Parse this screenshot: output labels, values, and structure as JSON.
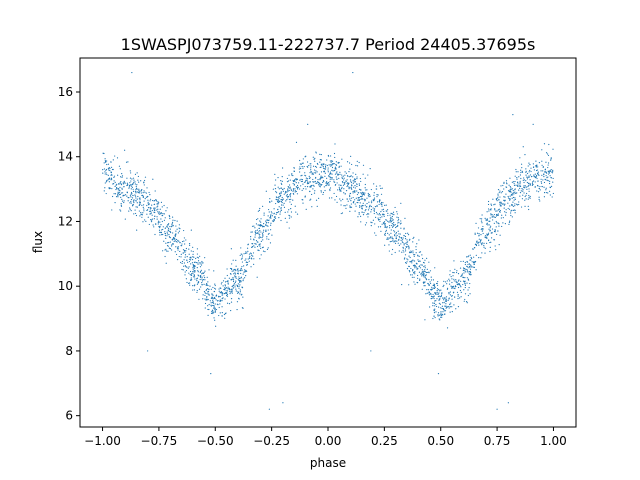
{
  "chart_data": {
    "type": "scatter",
    "title": "1SWASPJ073759.11-222737.7 Period 24405.37695s",
    "xlabel": "phase",
    "ylabel": "flux",
    "xlim": [
      -1.1,
      1.1
    ],
    "ylim": [
      5.65,
      17.05
    ],
    "x_ticks": [
      -1.0,
      -0.75,
      -0.5,
      -0.25,
      0.0,
      0.25,
      0.5,
      0.75,
      1.0
    ],
    "x_tick_labels": [
      "−1.00",
      "−0.75",
      "−0.50",
      "−0.25",
      "0.00",
      "0.25",
      "0.50",
      "0.75",
      "1.00"
    ],
    "y_ticks": [
      6,
      8,
      10,
      12,
      14,
      16
    ],
    "y_tick_labels": [
      "6",
      "8",
      "10",
      "12",
      "14",
      "16"
    ],
    "grid": false,
    "legend": "none",
    "marker_color": "#1f77b4",
    "series": [
      {
        "phase_range": [
          -1.0,
          1.0
        ],
        "trend": {
          "phase": [
            -1.0,
            -0.9,
            -0.8,
            -0.7,
            -0.6,
            -0.5,
            -0.4,
            -0.3,
            -0.2,
            -0.1,
            0.0,
            0.1,
            0.2,
            0.3,
            0.4,
            0.5,
            0.6,
            0.7,
            0.8,
            0.9,
            1.0
          ],
          "flux": [
            13.5,
            13.0,
            12.5,
            11.7,
            10.6,
            9.5,
            10.2,
            11.7,
            12.8,
            13.3,
            13.5,
            13.0,
            12.5,
            11.7,
            10.6,
            9.5,
            10.2,
            11.7,
            12.8,
            13.3,
            13.5
          ]
        },
        "scatter": 0.35,
        "point_count": 3000,
        "outliers": [
          {
            "phase": -0.87,
            "flux": 16.6
          },
          {
            "phase": 0.11,
            "flux": 16.6
          },
          {
            "phase": 0.82,
            "flux": 15.3
          },
          {
            "phase": -0.52,
            "flux": 7.3
          },
          {
            "phase": 0.49,
            "flux": 7.3
          },
          {
            "phase": -0.26,
            "flux": 6.2
          },
          {
            "phase": 0.75,
            "flux": 6.2
          },
          {
            "phase": -0.8,
            "flux": 8.0
          },
          {
            "phase": 0.19,
            "flux": 8.0
          },
          {
            "phase": -0.2,
            "flux": 6.4
          },
          {
            "phase": 0.8,
            "flux": 6.4
          },
          {
            "phase": -0.09,
            "flux": 15.0
          },
          {
            "phase": 0.91,
            "flux": 15.0
          }
        ]
      }
    ]
  }
}
